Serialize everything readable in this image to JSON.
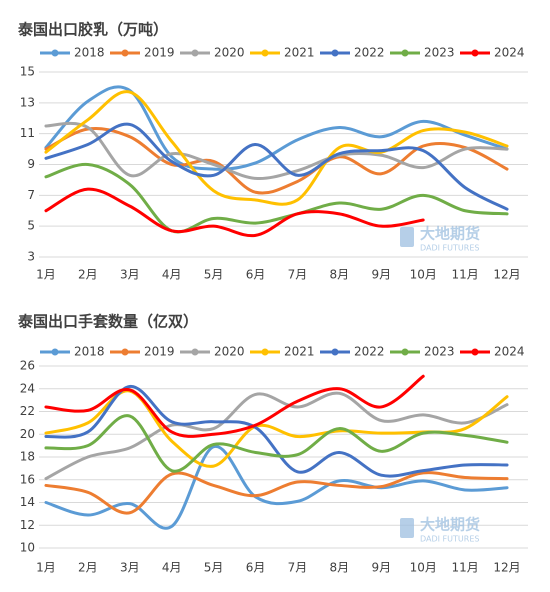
{
  "chart_data": [
    {
      "type": "line",
      "title": "泰国出口胶乳（万吨）",
      "smooth": true,
      "grid": true,
      "categories": [
        "1月",
        "2月",
        "3月",
        "4月",
        "5月",
        "6月",
        "7月",
        "8月",
        "9月",
        "10月",
        "11月",
        "12月"
      ],
      "ylim": [
        3,
        15
      ],
      "yticks": [
        3,
        5,
        7,
        9,
        11,
        13,
        15
      ],
      "watermark": [
        "大地期货",
        "DADI FUTURES"
      ],
      "series": [
        {
          "name": "2018",
          "color": "#5b9bd5",
          "values": [
            10.1,
            13.1,
            13.8,
            9.5,
            8.7,
            9.1,
            10.6,
            11.4,
            10.8,
            11.8,
            10.9,
            10.0
          ]
        },
        {
          "name": "2019",
          "color": "#ed7d31",
          "values": [
            10.0,
            11.3,
            10.8,
            9.0,
            9.2,
            7.2,
            7.9,
            9.5,
            8.4,
            10.2,
            10.1,
            8.7
          ]
        },
        {
          "name": "2020",
          "color": "#a5a5a5",
          "values": [
            11.5,
            11.4,
            8.3,
            9.7,
            9.0,
            8.1,
            8.6,
            9.6,
            9.6,
            8.8,
            10.0,
            10.0
          ]
        },
        {
          "name": "2021",
          "color": "#ffc000",
          "values": [
            9.8,
            11.9,
            13.7,
            10.5,
            7.3,
            6.7,
            6.7,
            10.1,
            9.8,
            11.2,
            11.1,
            10.2
          ]
        },
        {
          "name": "2022",
          "color": "#4472c4",
          "values": [
            9.4,
            10.3,
            11.6,
            9.2,
            8.3,
            10.3,
            8.3,
            9.7,
            9.9,
            9.9,
            7.5,
            6.1
          ]
        },
        {
          "name": "2023",
          "color": "#70ad47",
          "values": [
            8.2,
            9.0,
            7.7,
            4.7,
            5.5,
            5.2,
            5.8,
            6.5,
            6.1,
            7.0,
            6.0,
            5.8
          ]
        },
        {
          "name": "2024",
          "color": "#ff0000",
          "values": [
            6.0,
            7.4,
            6.3,
            4.7,
            5.0,
            4.4,
            5.8,
            5.8,
            5.0,
            5.4,
            null,
            null
          ]
        }
      ]
    },
    {
      "type": "line",
      "title": "泰国出口手套数量（亿双）",
      "smooth": true,
      "grid": true,
      "categories": [
        "1月",
        "2月",
        "3月",
        "4月",
        "5月",
        "6月",
        "7月",
        "8月",
        "9月",
        "10月",
        "11月",
        "12月"
      ],
      "ylim": [
        10,
        26
      ],
      "yticks": [
        10,
        12,
        14,
        16,
        18,
        20,
        22,
        24,
        26
      ],
      "watermark": [
        "大地期货",
        "DADI FUTURES"
      ],
      "series": [
        {
          "name": "2018",
          "color": "#5b9bd5",
          "values": [
            14.0,
            12.9,
            13.9,
            11.9,
            18.9,
            14.5,
            14.1,
            15.9,
            15.3,
            15.9,
            15.1,
            15.3
          ]
        },
        {
          "name": "2019",
          "color": "#ed7d31",
          "values": [
            15.5,
            14.9,
            13.1,
            16.5,
            15.5,
            14.6,
            15.8,
            15.5,
            15.4,
            16.6,
            16.2,
            16.1
          ]
        },
        {
          "name": "2020",
          "color": "#a5a5a5",
          "values": [
            16.1,
            18.0,
            18.8,
            20.8,
            20.5,
            23.5,
            22.4,
            23.6,
            21.2,
            21.7,
            21.0,
            22.6
          ]
        },
        {
          "name": "2021",
          "color": "#ffc000",
          "values": [
            20.1,
            21.0,
            23.8,
            19.4,
            17.2,
            20.7,
            19.8,
            20.3,
            20.1,
            20.2,
            20.5,
            23.3
          ]
        },
        {
          "name": "2022",
          "color": "#4472c4",
          "values": [
            19.8,
            20.2,
            24.2,
            21.1,
            21.1,
            20.6,
            16.7,
            18.4,
            16.4,
            16.8,
            17.3,
            17.3
          ]
        },
        {
          "name": "2023",
          "color": "#70ad47",
          "values": [
            18.8,
            19.0,
            21.6,
            16.8,
            19.1,
            18.4,
            18.2,
            20.5,
            18.5,
            20.1,
            19.9,
            19.3
          ]
        },
        {
          "name": "2024",
          "color": "#ff0000",
          "values": [
            22.4,
            22.1,
            23.9,
            20.2,
            20.0,
            20.8,
            22.9,
            24.0,
            22.4,
            25.1,
            null,
            null
          ]
        }
      ]
    }
  ]
}
